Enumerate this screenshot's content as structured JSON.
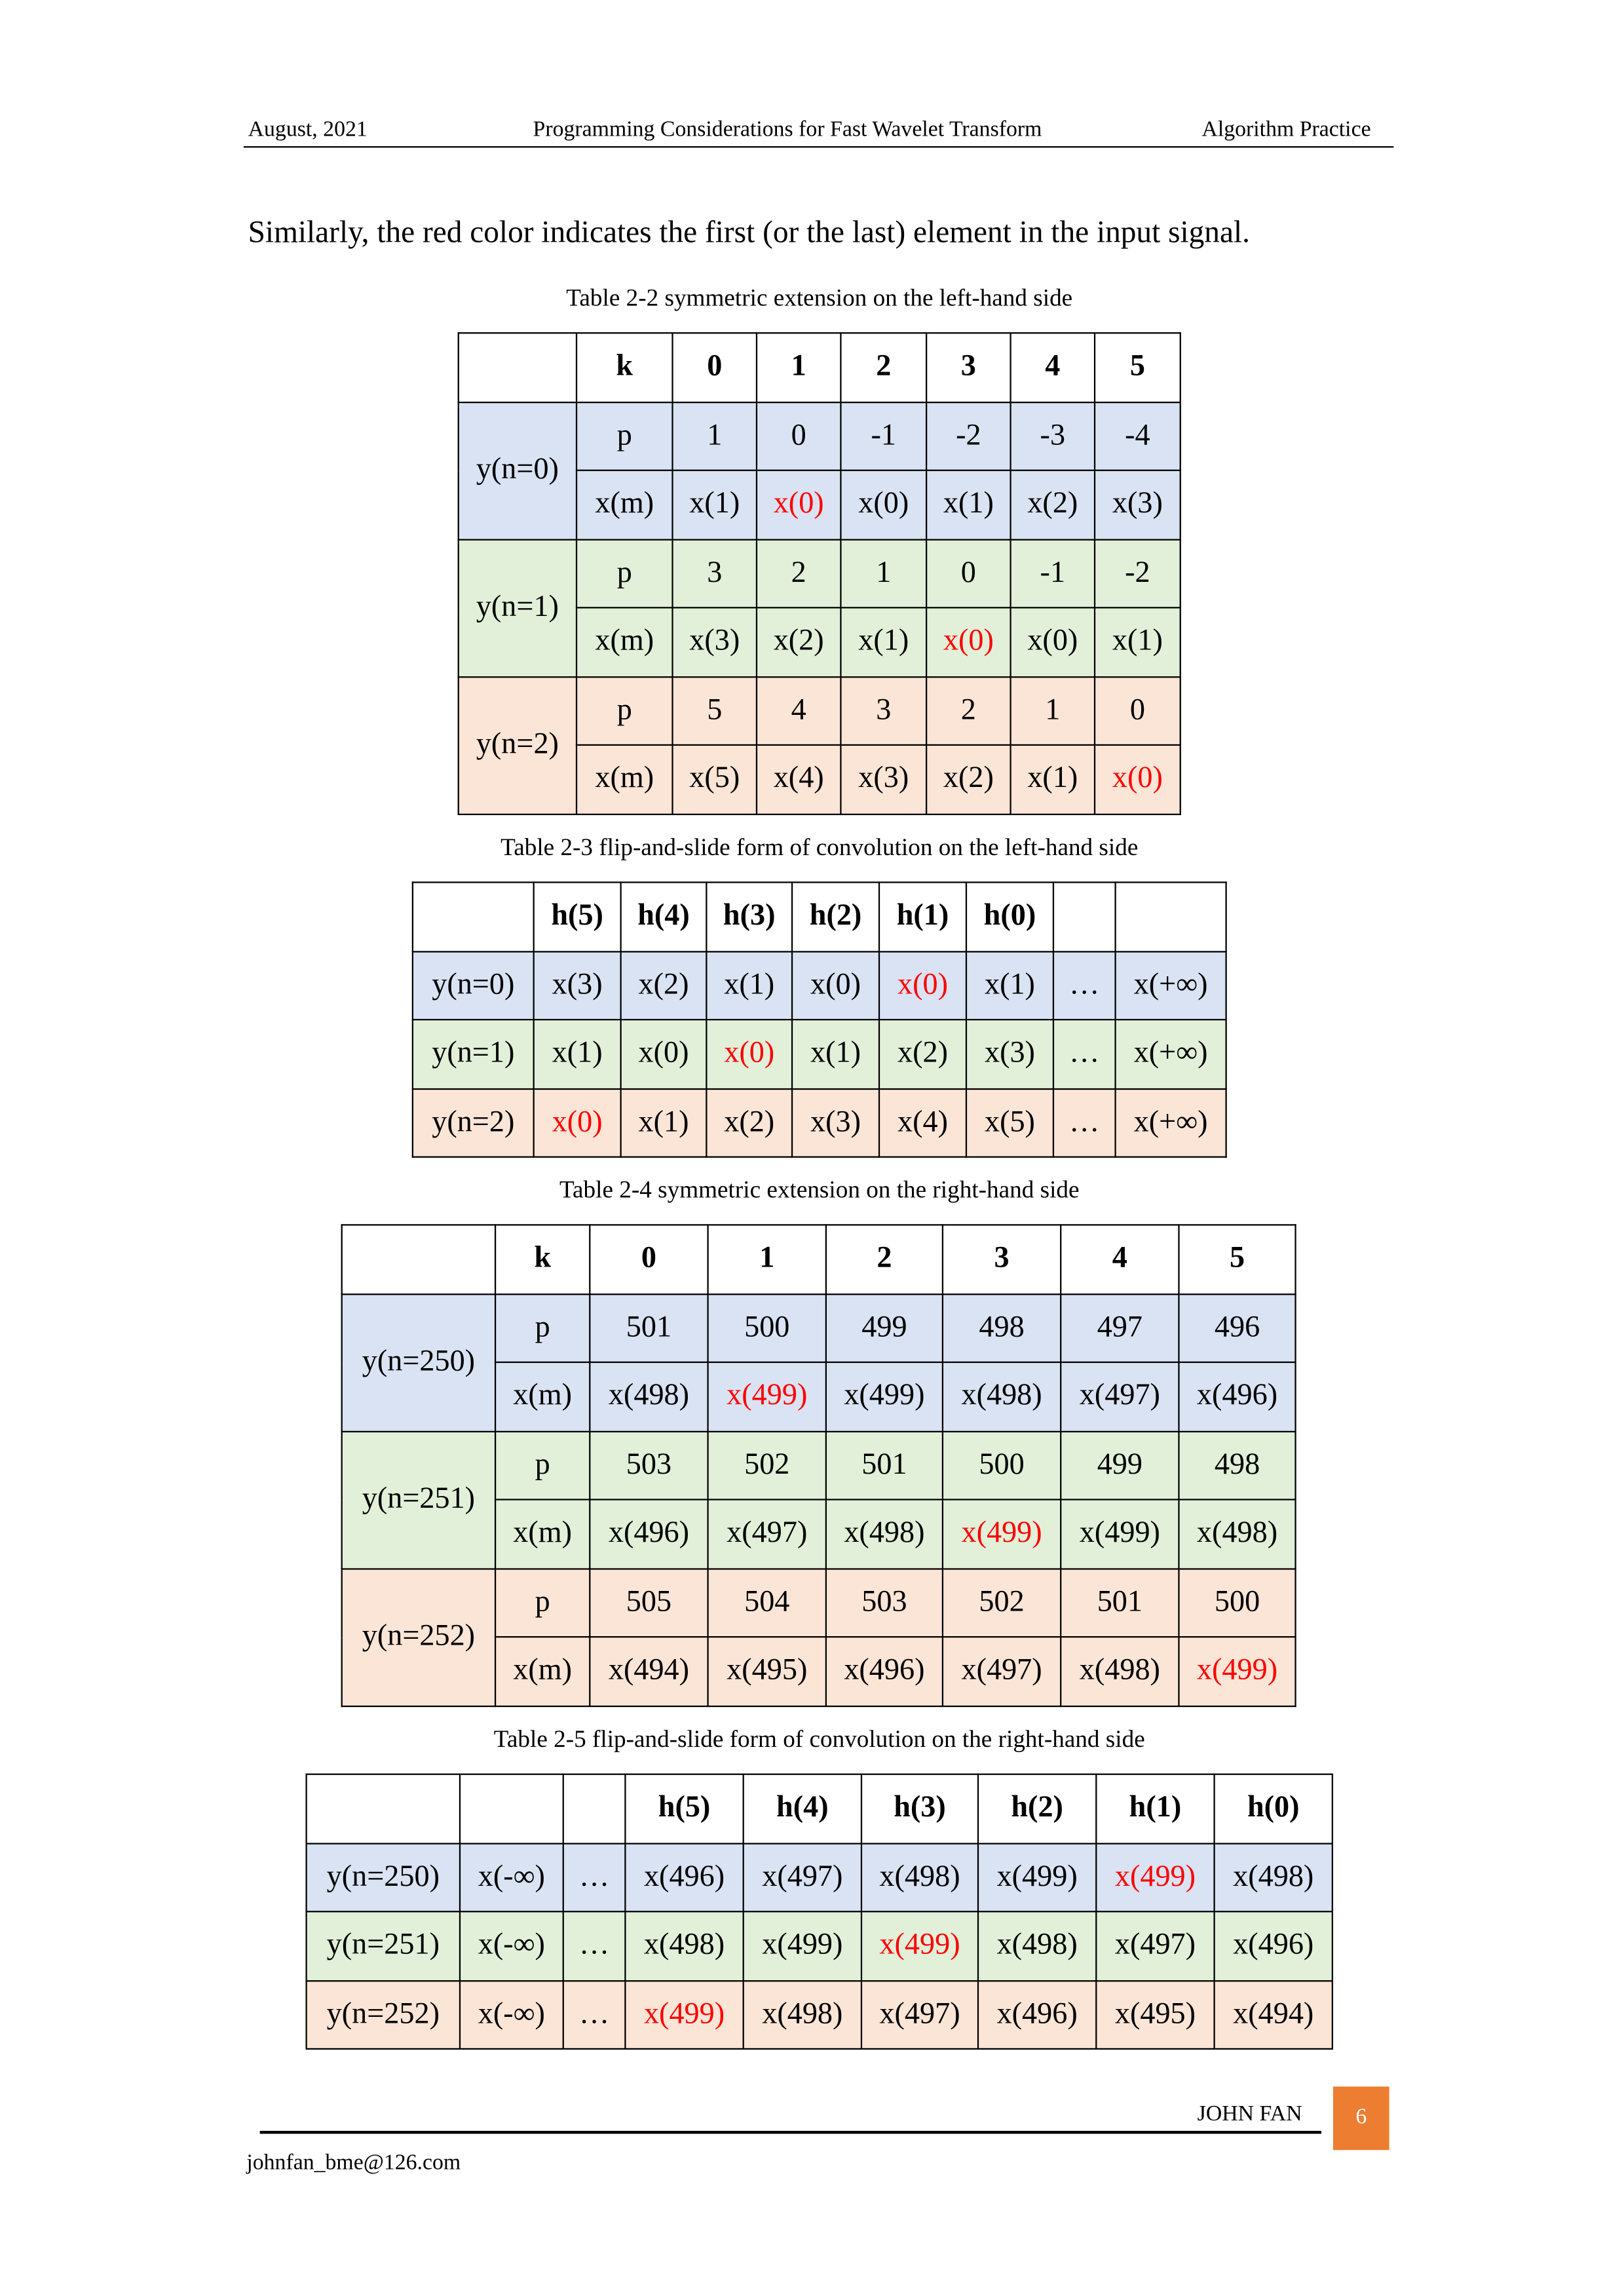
{
  "header": {
    "date": "August, 2021",
    "title": "Programming Considerations for Fast Wavelet Transform",
    "section": "Algorithm Practice"
  },
  "body_text": "Similarly, the red color indicates the first (or the last) element in the input signal.",
  "colors": {
    "blue": "#DAE3F3",
    "green": "#E2F0D9",
    "orange": "#FBE5D6",
    "highlight": "#FF0000",
    "page_box": "#ED7D31"
  },
  "tables": [
    {
      "caption": "Table 2-2 symmetric extension on the left-hand side",
      "kind": "grouped",
      "header": [
        "",
        "k",
        "0",
        "1",
        "2",
        "3",
        "4",
        "5"
      ],
      "groups": [
        {
          "label": "y(n=0)",
          "color": "blue",
          "rows": [
            {
              "label": "p",
              "cells": [
                "1",
                "0",
                "-1",
                "-2",
                "-3",
                "-4"
              ]
            },
            {
              "label": "x(m)",
              "cells": [
                "x(1)",
                "x(0)",
                "x(0)",
                "x(1)",
                "x(2)",
                "x(3)"
              ],
              "red": [
                1
              ]
            }
          ]
        },
        {
          "label": "y(n=1)",
          "color": "green",
          "rows": [
            {
              "label": "p",
              "cells": [
                "3",
                "2",
                "1",
                "0",
                "-1",
                "-2"
              ]
            },
            {
              "label": "x(m)",
              "cells": [
                "x(3)",
                "x(2)",
                "x(1)",
                "x(0)",
                "x(0)",
                "x(1)"
              ],
              "red": [
                3
              ]
            }
          ]
        },
        {
          "label": "y(n=2)",
          "color": "orange",
          "rows": [
            {
              "label": "p",
              "cells": [
                "5",
                "4",
                "3",
                "2",
                "1",
                "0"
              ]
            },
            {
              "label": "x(m)",
              "cells": [
                "x(5)",
                "x(4)",
                "x(3)",
                "x(2)",
                "x(1)",
                "x(0)"
              ],
              "red": [
                5
              ]
            }
          ]
        }
      ]
    },
    {
      "caption": "Table 2-3 flip-and-slide form of convolution on the left-hand side",
      "kind": "flat",
      "header": [
        "",
        "h(5)",
        "h(4)",
        "h(3)",
        "h(2)",
        "h(1)",
        "h(0)",
        "",
        ""
      ],
      "rows": [
        {
          "color": "blue",
          "cells": [
            "y(n=0)",
            "x(3)",
            "x(2)",
            "x(1)",
            "x(0)",
            "x(0)",
            "x(1)",
            "…",
            "x(+∞)"
          ],
          "red": [
            5
          ]
        },
        {
          "color": "green",
          "cells": [
            "y(n=1)",
            "x(1)",
            "x(0)",
            "x(0)",
            "x(1)",
            "x(2)",
            "x(3)",
            "…",
            "x(+∞)"
          ],
          "red": [
            3
          ]
        },
        {
          "color": "orange",
          "cells": [
            "y(n=2)",
            "x(0)",
            "x(1)",
            "x(2)",
            "x(3)",
            "x(4)",
            "x(5)",
            "…",
            "x(+∞)"
          ],
          "red": [
            1
          ]
        }
      ]
    },
    {
      "caption": "Table 2-4 symmetric extension on the right-hand side",
      "kind": "grouped",
      "header": [
        "",
        "k",
        "0",
        "1",
        "2",
        "3",
        "4",
        "5"
      ],
      "groups": [
        {
          "label": "y(n=250)",
          "color": "blue",
          "rows": [
            {
              "label": "p",
              "cells": [
                "501",
                "500",
                "499",
                "498",
                "497",
                "496"
              ]
            },
            {
              "label": "x(m)",
              "cells": [
                "x(498)",
                "x(499)",
                "x(499)",
                "x(498)",
                "x(497)",
                "x(496)"
              ],
              "red": [
                1
              ]
            }
          ]
        },
        {
          "label": "y(n=251)",
          "color": "green",
          "rows": [
            {
              "label": "p",
              "cells": [
                "503",
                "502",
                "501",
                "500",
                "499",
                "498"
              ]
            },
            {
              "label": "x(m)",
              "cells": [
                "x(496)",
                "x(497)",
                "x(498)",
                "x(499)",
                "x(499)",
                "x(498)"
              ],
              "red": [
                3
              ]
            }
          ]
        },
        {
          "label": "y(n=252)",
          "color": "orange",
          "rows": [
            {
              "label": "p",
              "cells": [
                "505",
                "504",
                "503",
                "502",
                "501",
                "500"
              ]
            },
            {
              "label": "x(m)",
              "cells": [
                "x(494)",
                "x(495)",
                "x(496)",
                "x(497)",
                "x(498)",
                "x(499)"
              ],
              "red": [
                5
              ]
            }
          ]
        }
      ]
    },
    {
      "caption": "Table 2-5 flip-and-slide form of convolution on the right-hand side",
      "kind": "flat",
      "header": [
        "",
        "",
        "",
        "h(5)",
        "h(4)",
        "h(3)",
        "h(2)",
        "h(1)",
        "h(0)"
      ],
      "rows": [
        {
          "color": "blue",
          "cells": [
            "y(n=250)",
            "x(-∞)",
            "…",
            "x(496)",
            "x(497)",
            "x(498)",
            "x(499)",
            "x(499)",
            "x(498)"
          ],
          "red": [
            7
          ]
        },
        {
          "color": "green",
          "cells": [
            "y(n=251)",
            "x(-∞)",
            "…",
            "x(498)",
            "x(499)",
            "x(499)",
            "x(498)",
            "x(497)",
            "x(496)"
          ],
          "red": [
            5
          ]
        },
        {
          "color": "orange",
          "cells": [
            "y(n=252)",
            "x(-∞)",
            "…",
            "x(499)",
            "x(498)",
            "x(497)",
            "x(496)",
            "x(495)",
            "x(494)"
          ],
          "red": [
            3
          ]
        }
      ]
    }
  ],
  "footer": {
    "author": "JOHN FAN",
    "page_number": "6",
    "email": "johnfan_bme@126.com"
  }
}
